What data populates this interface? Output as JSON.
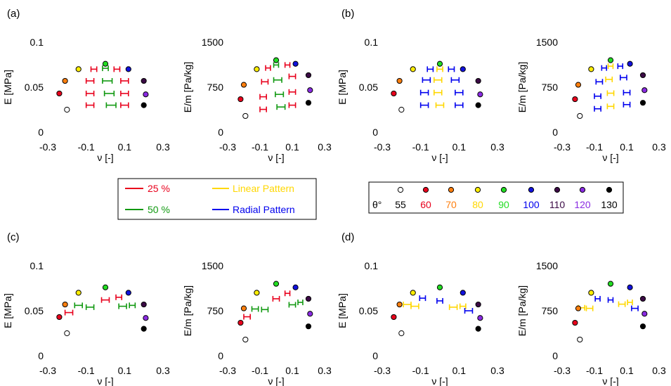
{
  "panel_labels": [
    "(a)",
    "(b)",
    "(c)",
    "(d)"
  ],
  "legend_pattern": {
    "items": [
      {
        "label": "25 %",
        "color": "#e8001c"
      },
      {
        "label": "Linear Pattern",
        "color": "#ffd700"
      },
      {
        "label": "50 %",
        "color": "#119911"
      },
      {
        "label": "Radial Pattern",
        "color": "#0000ee"
      }
    ]
  },
  "legend_angle": {
    "prefix": "θ°",
    "items": [
      {
        "label": "55",
        "fill": "#ffffff",
        "text_color": "#000000"
      },
      {
        "label": "60",
        "fill": "#e8001c",
        "text_color": "#e8001c"
      },
      {
        "label": "70",
        "fill": "#ff7f0e",
        "text_color": "#ff7f0e"
      },
      {
        "label": "80",
        "fill": "#ffee00",
        "text_color": "#ffd700"
      },
      {
        "label": "90",
        "fill": "#22dd22",
        "text_color": "#22dd22"
      },
      {
        "label": "100",
        "fill": "#1111dd",
        "text_color": "#0000ee"
      },
      {
        "label": "110",
        "fill": "#3b0a45",
        "text_color": "#3b0a45"
      },
      {
        "label": "120",
        "fill": "#8a2be2",
        "text_color": "#8a2be2"
      },
      {
        "label": "130",
        "fill": "#000000",
        "text_color": "#000000"
      }
    ]
  },
  "chart_data": [
    {
      "type": "scatter",
      "panel": "(a)",
      "ylabel": "E [MPa]",
      "xlabel": "ν [-]",
      "xlim": [
        -0.3,
        0.3
      ],
      "ylim": [
        0,
        0.1
      ],
      "yticks": [
        "0",
        "0.05",
        "0.1"
      ],
      "xticks": [
        "-0.3",
        "-0.1",
        "0.1",
        "0.3"
      ],
      "points": [
        {
          "x": -0.2,
          "y": 0.025
        },
        {
          "x": -0.24,
          "y": 0.043
        },
        {
          "x": -0.21,
          "y": 0.057
        },
        {
          "x": -0.14,
          "y": 0.07
        },
        {
          "x": 0.0,
          "y": 0.076
        },
        {
          "x": 0.12,
          "y": 0.07
        },
        {
          "x": 0.2,
          "y": 0.057
        },
        {
          "x": 0.21,
          "y": 0.042
        },
        {
          "x": 0.2,
          "y": 0.03
        }
      ],
      "errorbars": [
        {
          "color": "red",
          "x": -0.08,
          "y": 0.03,
          "xerr": 0.02
        },
        {
          "x": -0.08,
          "y": 0.043,
          "xerr": 0.02,
          "color": "red"
        },
        {
          "x": -0.08,
          "y": 0.057,
          "xerr": 0.02,
          "color": "red"
        },
        {
          "x": -0.06,
          "y": 0.07,
          "xerr": 0.015,
          "color": "red"
        },
        {
          "x": 0.1,
          "y": 0.03,
          "xerr": 0.02,
          "color": "red"
        },
        {
          "x": 0.1,
          "y": 0.043,
          "xerr": 0.02,
          "color": "red"
        },
        {
          "x": 0.1,
          "y": 0.057,
          "xerr": 0.02,
          "color": "red"
        },
        {
          "x": 0.06,
          "y": 0.07,
          "xerr": 0.015,
          "color": "red"
        },
        {
          "x": 0.03,
          "y": 0.03,
          "xerr": 0.025,
          "color": "green"
        },
        {
          "x": 0.02,
          "y": 0.043,
          "xerr": 0.025,
          "color": "green"
        },
        {
          "x": 0.01,
          "y": 0.057,
          "xerr": 0.025,
          "color": "green"
        },
        {
          "x": 0.0,
          "y": 0.071,
          "xerr": 0.015,
          "color": "green"
        }
      ]
    },
    {
      "type": "scatter",
      "panel": "(a)",
      "ylabel": "E/m [Pa/kg]",
      "xlabel": "ν [-]",
      "xlim": [
        -0.3,
        0.3
      ],
      "ylim": [
        0,
        1500
      ],
      "yticks": [
        "0",
        "750",
        "1500"
      ],
      "xticks": [
        "-0.3",
        "-0.1",
        "0.1",
        "0.3"
      ],
      "points": [
        {
          "x": -0.19,
          "y": 270
        },
        {
          "x": -0.22,
          "y": 550
        },
        {
          "x": -0.2,
          "y": 790
        },
        {
          "x": -0.12,
          "y": 1050
        },
        {
          "x": 0.0,
          "y": 1200
        },
        {
          "x": 0.12,
          "y": 1140
        },
        {
          "x": 0.2,
          "y": 950
        },
        {
          "x": 0.21,
          "y": 700
        },
        {
          "x": 0.2,
          "y": 490
        }
      ],
      "errorbars": [
        {
          "x": -0.08,
          "y": 380,
          "xerr": 0.02,
          "color": "red"
        },
        {
          "x": -0.08,
          "y": 590,
          "xerr": 0.02,
          "color": "red"
        },
        {
          "x": -0.07,
          "y": 840,
          "xerr": 0.02,
          "color": "red"
        },
        {
          "x": -0.05,
          "y": 1070,
          "xerr": 0.015,
          "color": "red"
        },
        {
          "x": 0.1,
          "y": 450,
          "xerr": 0.02,
          "color": "red"
        },
        {
          "x": 0.1,
          "y": 670,
          "xerr": 0.02,
          "color": "red"
        },
        {
          "x": 0.1,
          "y": 930,
          "xerr": 0.02,
          "color": "red"
        },
        {
          "x": 0.07,
          "y": 1120,
          "xerr": 0.015,
          "color": "red"
        },
        {
          "x": 0.03,
          "y": 420,
          "xerr": 0.025,
          "color": "green"
        },
        {
          "x": 0.02,
          "y": 630,
          "xerr": 0.025,
          "color": "green"
        },
        {
          "x": 0.01,
          "y": 870,
          "xerr": 0.025,
          "color": "green"
        },
        {
          "x": 0.0,
          "y": 1120,
          "xerr": 0.015,
          "color": "green"
        }
      ]
    },
    {
      "type": "scatter",
      "panel": "(b)",
      "ylabel": "E [MPa]",
      "xlabel": "ν [-]",
      "xlim": [
        -0.3,
        0.3
      ],
      "ylim": [
        0,
        0.1
      ],
      "yticks": [
        "0",
        "0.05",
        "0.1"
      ],
      "xticks": [
        "-0.3",
        "-0.1",
        "0.1",
        "0.3"
      ],
      "points": [
        {
          "x": -0.2,
          "y": 0.025
        },
        {
          "x": -0.24,
          "y": 0.043
        },
        {
          "x": -0.21,
          "y": 0.057
        },
        {
          "x": -0.14,
          "y": 0.07
        },
        {
          "x": 0.0,
          "y": 0.076
        },
        {
          "x": 0.12,
          "y": 0.07
        },
        {
          "x": 0.2,
          "y": 0.057
        },
        {
          "x": 0.21,
          "y": 0.042
        },
        {
          "x": 0.2,
          "y": 0.03
        }
      ],
      "errorbars": [
        {
          "x": -0.08,
          "y": 0.03,
          "xerr": 0.02,
          "color": "blue"
        },
        {
          "x": -0.08,
          "y": 0.044,
          "xerr": 0.02,
          "color": "blue"
        },
        {
          "x": -0.07,
          "y": 0.058,
          "xerr": 0.02,
          "color": "blue"
        },
        {
          "x": -0.05,
          "y": 0.07,
          "xerr": 0.015,
          "color": "blue"
        },
        {
          "x": 0.1,
          "y": 0.03,
          "xerr": 0.02,
          "color": "blue"
        },
        {
          "x": 0.1,
          "y": 0.044,
          "xerr": 0.02,
          "color": "blue"
        },
        {
          "x": 0.08,
          "y": 0.058,
          "xerr": 0.02,
          "color": "blue"
        },
        {
          "x": 0.06,
          "y": 0.07,
          "xerr": 0.015,
          "color": "blue"
        },
        {
          "x": 0.0,
          "y": 0.03,
          "xerr": 0.02,
          "color": "yellow"
        },
        {
          "x": -0.01,
          "y": 0.044,
          "xerr": 0.02,
          "color": "yellow"
        },
        {
          "x": -0.01,
          "y": 0.058,
          "xerr": 0.02,
          "color": "yellow"
        },
        {
          "x": 0.0,
          "y": 0.07,
          "xerr": 0.015,
          "color": "yellow"
        }
      ]
    },
    {
      "type": "scatter",
      "panel": "(b)",
      "ylabel": "E/m [Pa/kg]",
      "xlabel": "ν [-]",
      "xlim": [
        -0.3,
        0.3
      ],
      "ylim": [
        0,
        1500
      ],
      "yticks": [
        "0",
        "750",
        "1500"
      ],
      "xticks": [
        "-0.3",
        "-0.1",
        "0.1",
        "0.3"
      ],
      "points": [
        {
          "x": -0.19,
          "y": 270
        },
        {
          "x": -0.22,
          "y": 550
        },
        {
          "x": -0.2,
          "y": 790
        },
        {
          "x": -0.12,
          "y": 1050
        },
        {
          "x": 0.0,
          "y": 1200
        },
        {
          "x": 0.12,
          "y": 1140
        },
        {
          "x": 0.2,
          "y": 950
        },
        {
          "x": 0.21,
          "y": 700
        },
        {
          "x": 0.2,
          "y": 490
        }
      ],
      "errorbars": [
        {
          "x": -0.08,
          "y": 390,
          "xerr": 0.02,
          "color": "blue"
        },
        {
          "x": -0.08,
          "y": 600,
          "xerr": 0.02,
          "color": "blue"
        },
        {
          "x": -0.07,
          "y": 840,
          "xerr": 0.02,
          "color": "blue"
        },
        {
          "x": -0.04,
          "y": 1070,
          "xerr": 0.015,
          "color": "blue"
        },
        {
          "x": 0.1,
          "y": 460,
          "xerr": 0.02,
          "color": "blue"
        },
        {
          "x": 0.1,
          "y": 660,
          "xerr": 0.02,
          "color": "blue"
        },
        {
          "x": 0.08,
          "y": 910,
          "xerr": 0.02,
          "color": "blue"
        },
        {
          "x": 0.06,
          "y": 1100,
          "xerr": 0.015,
          "color": "blue"
        },
        {
          "x": 0.0,
          "y": 430,
          "xerr": 0.02,
          "color": "yellow"
        },
        {
          "x": 0.0,
          "y": 650,
          "xerr": 0.02,
          "color": "yellow"
        },
        {
          "x": -0.01,
          "y": 880,
          "xerr": 0.02,
          "color": "yellow"
        },
        {
          "x": 0.0,
          "y": 1100,
          "xerr": 0.015,
          "color": "yellow"
        }
      ]
    },
    {
      "type": "scatter",
      "panel": "(c)",
      "ylabel": "E [MPa]",
      "xlabel": "ν [-]",
      "xlim": [
        -0.3,
        0.3
      ],
      "ylim": [
        0,
        0.1
      ],
      "yticks": [
        "0",
        "0.05",
        "0.1"
      ],
      "xticks": [
        "-0.3",
        "-0.1",
        "0.1",
        "0.3"
      ],
      "points": [
        {
          "x": -0.2,
          "y": 0.025
        },
        {
          "x": -0.24,
          "y": 0.043
        },
        {
          "x": -0.21,
          "y": 0.057
        },
        {
          "x": -0.14,
          "y": 0.07
        },
        {
          "x": 0.0,
          "y": 0.076
        },
        {
          "x": 0.12,
          "y": 0.07
        },
        {
          "x": 0.2,
          "y": 0.057
        },
        {
          "x": 0.21,
          "y": 0.042
        },
        {
          "x": 0.2,
          "y": 0.03
        }
      ],
      "errorbars": [
        {
          "x": -0.19,
          "y": 0.048,
          "xerr": 0.02,
          "color": "red"
        },
        {
          "x": 0.0,
          "y": 0.062,
          "xerr": 0.02,
          "color": "red"
        },
        {
          "x": 0.07,
          "y": 0.065,
          "xerr": 0.015,
          "color": "red"
        },
        {
          "x": -0.14,
          "y": 0.056,
          "xerr": 0.02,
          "color": "green"
        },
        {
          "x": -0.08,
          "y": 0.054,
          "xerr": 0.02,
          "color": "green"
        },
        {
          "x": 0.09,
          "y": 0.055,
          "xerr": 0.02,
          "color": "green"
        },
        {
          "x": 0.14,
          "y": 0.056,
          "xerr": 0.015,
          "color": "green"
        }
      ]
    },
    {
      "type": "scatter",
      "panel": "(c)",
      "ylabel": "E/m [Pa/kg]",
      "xlabel": "ν [-]",
      "xlim": [
        -0.3,
        0.3
      ],
      "ylim": [
        0,
        1500
      ],
      "yticks": [
        "0",
        "750",
        "1500"
      ],
      "xticks": [
        "-0.3",
        "-0.1",
        "0.1",
        "0.3"
      ],
      "points": [
        {
          "x": -0.19,
          "y": 270
        },
        {
          "x": -0.22,
          "y": 550
        },
        {
          "x": -0.2,
          "y": 790
        },
        {
          "x": -0.12,
          "y": 1050
        },
        {
          "x": 0.0,
          "y": 1200
        },
        {
          "x": 0.12,
          "y": 1140
        },
        {
          "x": 0.2,
          "y": 950
        },
        {
          "x": 0.21,
          "y": 700
        },
        {
          "x": 0.2,
          "y": 490
        }
      ],
      "errorbars": [
        {
          "x": -0.18,
          "y": 650,
          "xerr": 0.02,
          "color": "red"
        },
        {
          "x": 0.0,
          "y": 950,
          "xerr": 0.02,
          "color": "red"
        },
        {
          "x": 0.07,
          "y": 1040,
          "xerr": 0.015,
          "color": "red"
        },
        {
          "x": -0.13,
          "y": 780,
          "xerr": 0.02,
          "color": "green"
        },
        {
          "x": -0.07,
          "y": 770,
          "xerr": 0.02,
          "color": "green"
        },
        {
          "x": 0.1,
          "y": 850,
          "xerr": 0.02,
          "color": "green"
        },
        {
          "x": 0.15,
          "y": 890,
          "xerr": 0.015,
          "color": "green"
        }
      ]
    },
    {
      "type": "scatter",
      "panel": "(d)",
      "ylabel": "E [MPa]",
      "xlabel": "ν [-]",
      "xlim": [
        -0.3,
        0.3
      ],
      "ylim": [
        0,
        0.1
      ],
      "yticks": [
        "0",
        "0.05",
        "0.1"
      ],
      "xticks": [
        "-0.3",
        "-0.1",
        "0.1",
        "0.3"
      ],
      "points": [
        {
          "x": -0.2,
          "y": 0.025
        },
        {
          "x": -0.24,
          "y": 0.043
        },
        {
          "x": -0.21,
          "y": 0.057
        },
        {
          "x": -0.14,
          "y": 0.07
        },
        {
          "x": 0.0,
          "y": 0.076
        },
        {
          "x": 0.12,
          "y": 0.07
        },
        {
          "x": 0.2,
          "y": 0.057
        },
        {
          "x": 0.21,
          "y": 0.042
        },
        {
          "x": 0.2,
          "y": 0.03
        }
      ],
      "errorbars": [
        {
          "x": -0.17,
          "y": 0.057,
          "xerr": 0.02,
          "color": "yellow"
        },
        {
          "x": -0.13,
          "y": 0.055,
          "xerr": 0.02,
          "color": "yellow"
        },
        {
          "x": 0.07,
          "y": 0.054,
          "xerr": 0.02,
          "color": "yellow"
        },
        {
          "x": 0.12,
          "y": 0.055,
          "xerr": 0.015,
          "color": "yellow"
        },
        {
          "x": -0.09,
          "y": 0.064,
          "xerr": 0.015,
          "color": "blue"
        },
        {
          "x": 0.0,
          "y": 0.061,
          "xerr": 0.015,
          "color": "blue"
        },
        {
          "x": 0.15,
          "y": 0.05,
          "xerr": 0.02,
          "color": "blue"
        }
      ]
    },
    {
      "type": "scatter",
      "panel": "(d)",
      "ylabel": "E/m [Pa/kg]",
      "xlabel": "ν [-]",
      "xlim": [
        -0.3,
        0.3
      ],
      "ylim": [
        0,
        1500
      ],
      "yticks": [
        "0",
        "750",
        "1500"
      ],
      "xticks": [
        "-0.3",
        "-0.1",
        "0.1",
        "0.3"
      ],
      "points": [
        {
          "x": -0.19,
          "y": 270
        },
        {
          "x": -0.22,
          "y": 550
        },
        {
          "x": -0.2,
          "y": 790
        },
        {
          "x": -0.12,
          "y": 1050
        },
        {
          "x": 0.0,
          "y": 1200
        },
        {
          "x": 0.12,
          "y": 1140
        },
        {
          "x": 0.2,
          "y": 950
        },
        {
          "x": 0.21,
          "y": 700
        },
        {
          "x": 0.2,
          "y": 490
        }
      ],
      "errorbars": [
        {
          "x": -0.18,
          "y": 800,
          "xerr": 0.02,
          "color": "yellow"
        },
        {
          "x": -0.13,
          "y": 790,
          "xerr": 0.02,
          "color": "yellow"
        },
        {
          "x": 0.07,
          "y": 860,
          "xerr": 0.02,
          "color": "yellow"
        },
        {
          "x": 0.12,
          "y": 890,
          "xerr": 0.015,
          "color": "yellow"
        },
        {
          "x": -0.08,
          "y": 950,
          "xerr": 0.015,
          "color": "blue"
        },
        {
          "x": 0.0,
          "y": 930,
          "xerr": 0.015,
          "color": "blue"
        },
        {
          "x": 0.15,
          "y": 790,
          "xerr": 0.02,
          "color": "blue"
        }
      ]
    }
  ]
}
